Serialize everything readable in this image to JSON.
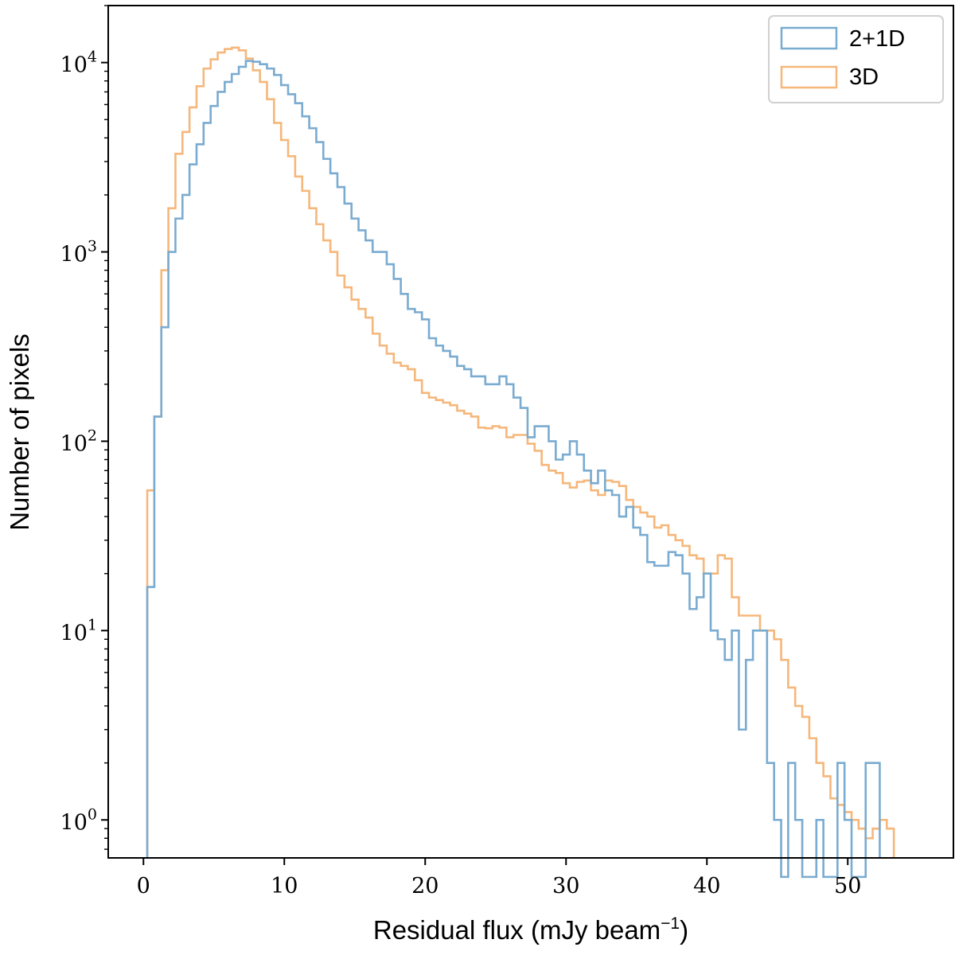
{
  "chart_data": {
    "type": "histogram",
    "xlabel": "Residual flux (mJy beam",
    "xlabel_sup": "−1",
    "xlabel_close": ")",
    "ylabel": "Number of pixels",
    "x_scale": "linear",
    "y_scale": "log",
    "xlim": [
      -2.5,
      57.5
    ],
    "ylim": [
      0.63,
      20000
    ],
    "grid": false,
    "legend_placement": "top-right",
    "x_ticks": [
      {
        "value": 0,
        "label": "0"
      },
      {
        "value": 10,
        "label": "10"
      },
      {
        "value": 20,
        "label": "20"
      },
      {
        "value": 30,
        "label": "30"
      },
      {
        "value": 40,
        "label": "40"
      },
      {
        "value": 50,
        "label": "50"
      }
    ],
    "y_ticks": [
      {
        "value": 1,
        "base": "10",
        "exp": "0"
      },
      {
        "value": 10,
        "base": "10",
        "exp": "1"
      },
      {
        "value": 100,
        "base": "10",
        "exp": "2"
      },
      {
        "value": 1000,
        "base": "10",
        "exp": "3"
      },
      {
        "value": 10000,
        "base": "10",
        "exp": "4"
      }
    ],
    "series": [
      {
        "name": "2+1D",
        "color": "#7aabd0",
        "bin_start": 0.27,
        "bin_width": 0.5,
        "counts": [
          17,
          135,
          400,
          1000,
          1500,
          2000,
          2900,
          3700,
          4800,
          5900,
          7000,
          7900,
          8700,
          9500,
          10200,
          10100,
          9800,
          9300,
          8600,
          7600,
          6800,
          6100,
          5200,
          4500,
          3800,
          3100,
          2600,
          2200,
          1800,
          1500,
          1300,
          1150,
          1000,
          1000,
          860,
          720,
          600,
          500,
          480,
          440,
          350,
          320,
          300,
          280,
          250,
          240,
          220,
          220,
          200,
          200,
          220,
          200,
          170,
          150,
          105,
          120,
          120,
          100,
          80,
          85,
          100,
          85,
          70,
          60,
          70,
          55,
          52,
          40,
          45,
          35,
          32,
          23,
          22,
          22,
          26,
          25,
          20,
          13,
          15,
          20,
          10,
          9,
          7,
          10,
          3,
          7,
          10,
          10,
          2,
          1,
          0.5,
          2,
          1,
          0.5,
          0.5,
          1,
          0.5,
          0.5,
          2,
          1,
          0.5,
          0.5,
          2,
          2
        ]
      },
      {
        "name": "3D",
        "color": "#f5b77b",
        "bin_start": 0.27,
        "bin_width": 0.5,
        "counts": [
          55,
          135,
          800,
          1700,
          3300,
          4300,
          5800,
          7500,
          9300,
          10400,
          11300,
          11800,
          12000,
          11600,
          10500,
          9100,
          7900,
          6400,
          4800,
          3900,
          3200,
          2500,
          2100,
          1700,
          1400,
          1150,
          1000,
          750,
          650,
          560,
          500,
          450,
          370,
          320,
          290,
          260,
          250,
          240,
          210,
          180,
          170,
          165,
          160,
          155,
          145,
          140,
          135,
          118,
          117,
          120,
          118,
          105,
          108,
          108,
          97,
          89,
          75,
          70,
          68,
          60,
          57,
          61,
          62,
          55,
          52,
          62,
          61,
          58,
          49,
          45,
          42,
          40,
          35,
          36,
          32,
          30,
          28,
          25,
          24,
          20,
          20,
          25,
          24,
          15,
          12,
          12,
          12,
          10,
          10,
          9,
          7,
          5,
          4,
          3.5,
          2.7,
          2,
          1.7,
          1.3,
          1.2,
          1.1,
          1,
          0.9,
          0.8,
          0.9,
          1,
          0.9
        ]
      }
    ]
  }
}
